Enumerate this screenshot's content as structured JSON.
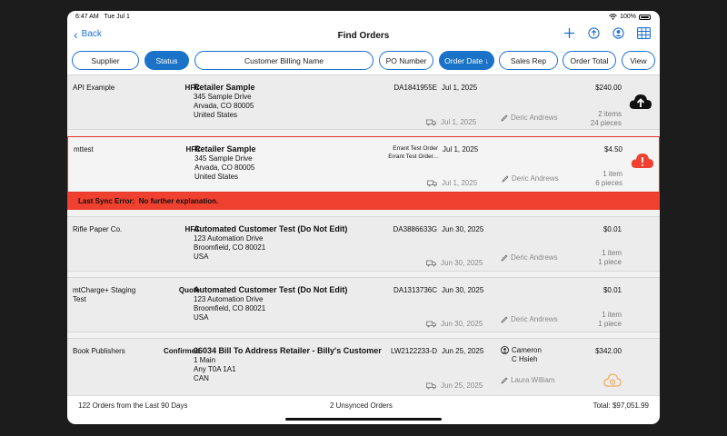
{
  "status_bar": {
    "time": "6:47 AM",
    "date": "Tue Jul 1",
    "battery": "100%"
  },
  "nav": {
    "back_label": "Back",
    "title": "Find Orders",
    "icons": [
      "plus-icon",
      "upload-icon",
      "user-icon",
      "grid-view-icon"
    ]
  },
  "filters": {
    "supplier": "Supplier",
    "status": "Status",
    "billing_name": "Customer Billing Name",
    "po_number": "PO Number",
    "order_date": "Order Date ↓",
    "sales_rep": "Sales Rep",
    "order_total": "Order Total",
    "view": "View"
  },
  "orders": [
    {
      "customer": "API Example",
      "type": "HFC",
      "ship_name": "Retailer Sample",
      "addr1": "345 Sample Drive",
      "addr2": "Arvada, CO  80005",
      "addr3": "United States",
      "order_number": "DA1841955E",
      "order_date": "Jul 1, 2025",
      "total": "$240.00",
      "ship_date": "Jul 1, 2025",
      "rep": "Deric Andrews",
      "items": "2 items",
      "pieces": "24 pieces",
      "sync_icon": "cloud-upload-icon"
    },
    {
      "customer": "mttest",
      "type": "HFC",
      "ship_name": "Retailer Sample",
      "addr1": "345 Sample Drive",
      "addr2": "Arvada, CO  80005",
      "addr3": "United States",
      "order_number_line1": "Errant Test Order",
      "order_number_line2": "Errant Test Order...",
      "order_date": "Jul 1, 2025",
      "total": "$4.50",
      "ship_date": "Jul 1, 2025",
      "rep": "Deric Andrews",
      "items": "1 item",
      "pieces": "6 pieces",
      "sync_icon": "cloud-error-icon",
      "error_label": "Last Sync Error:",
      "error_text": "No further explanation."
    },
    {
      "customer": "Rifle Paper Co.",
      "type": "HFC",
      "ship_name": "Automated Customer Test (Do Not Edit)",
      "addr1": "123 Automation Drive",
      "addr2": "Broomfield, CO  80021",
      "addr3": "USA",
      "order_number": "DA3886633G",
      "order_date": "Jun 30, 2025",
      "total": "$0.01",
      "ship_date": "Jun 30, 2025",
      "rep": "Deric Andrews",
      "items": "1 item",
      "pieces": "1 piece"
    },
    {
      "customer": "mtCharge+ Staging Test",
      "type": "Quote",
      "ship_name": "Automated Customer Test (Do Not Edit)",
      "addr1": "123 Automation Drive",
      "addr2": "Broomfield, CO  80021",
      "addr3": "USA",
      "order_number": "DA1313736C",
      "order_date": "Jun 30, 2025",
      "total": "$0.01",
      "ship_date": "Jun 30, 2025",
      "rep": "Deric Andrews",
      "items": "1 item",
      "pieces": "1 piece"
    },
    {
      "customer": "Book Publishers",
      "type": "Confirmed",
      "ship_name": "06034 Bill To Address Retailer - Billy's Customer",
      "addr1": "1 Main",
      "addr2": "Any  T0A 1A1",
      "addr3": "CAN",
      "order_number": "LW2122233-D",
      "order_date": "Jun 25, 2025",
      "total": "$342.00",
      "buyer_line1": "Cameron",
      "buyer_line2": "C Hsieh",
      "ship_date": "Jun 25, 2025",
      "rep": "Laura William",
      "sync_icon": "cloud-pending-icon"
    }
  ],
  "footer": {
    "summary": "122 Orders from the Last 90 Days",
    "unsynced": "2 Unsynced Orders",
    "total": "Total: $97,051.99"
  },
  "colors": {
    "accent": "#1a6fd8",
    "error": "#f0402f",
    "pending": "#f0a040"
  }
}
